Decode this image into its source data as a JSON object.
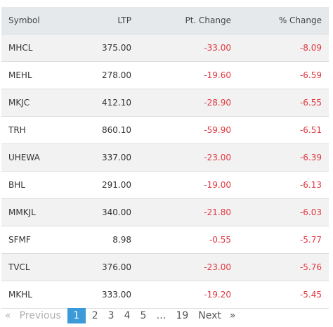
{
  "table": {
    "headers": {
      "symbol": "Symbol",
      "ltp": "LTP",
      "pt_change": "Pt. Change",
      "pct_change": "% Change"
    },
    "rows": [
      {
        "symbol": "MHCL",
        "ltp": "375.00",
        "pt_change": "-33.00",
        "pct_change": "-8.09"
      },
      {
        "symbol": "MEHL",
        "ltp": "278.00",
        "pt_change": "-19.60",
        "pct_change": "-6.59"
      },
      {
        "symbol": "MKJC",
        "ltp": "412.10",
        "pt_change": "-28.90",
        "pct_change": "-6.55"
      },
      {
        "symbol": "TRH",
        "ltp": "860.10",
        "pt_change": "-59.90",
        "pct_change": "-6.51"
      },
      {
        "symbol": "UHEWA",
        "ltp": "337.00",
        "pt_change": "-23.00",
        "pct_change": "-6.39"
      },
      {
        "symbol": "BHL",
        "ltp": "291.00",
        "pt_change": "-19.00",
        "pct_change": "-6.13"
      },
      {
        "symbol": "MMKJL",
        "ltp": "340.00",
        "pt_change": "-21.80",
        "pct_change": "-6.03"
      },
      {
        "symbol": "SFMF",
        "ltp": "8.98",
        "pt_change": "-0.55",
        "pct_change": "-5.77"
      },
      {
        "symbol": "TVCL",
        "ltp": "376.00",
        "pt_change": "-23.00",
        "pct_change": "-5.76"
      },
      {
        "symbol": "MKHL",
        "ltp": "333.00",
        "pt_change": "-19.20",
        "pct_change": "-5.45"
      }
    ]
  },
  "pagination": {
    "prev_arrow": "«",
    "previous": "Previous",
    "pages": [
      "1",
      "2",
      "3",
      "4",
      "5"
    ],
    "current": "1",
    "ellipsis": "…",
    "last_page": "19",
    "next": "Next",
    "next_arrow": "»"
  },
  "colors": {
    "negative": "#e0373f",
    "header_bg": "#e6e9ec",
    "current_page": "#3c9ad9"
  }
}
